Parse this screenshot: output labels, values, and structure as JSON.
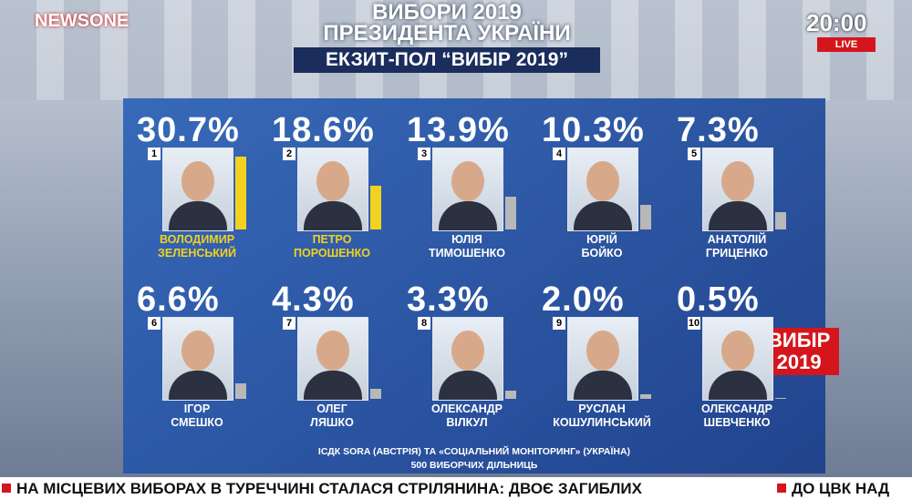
{
  "channel": {
    "logo": "NEWSONE",
    "time": "20:00",
    "live": "LIVE"
  },
  "header": {
    "title_line1": "ВИБОРИ 2019",
    "title_line2": "ПРЕЗИДЕНТА УКРАЇНИ",
    "subtitle": "ЕКЗИТ-ПОЛ “ВИБІР 2019”"
  },
  "badge": "ВИБІР 2019",
  "source": {
    "line1": "ІСДК SORA (АВСТРІЯ) ТА «СОЦІАЛЬНИЙ МОНІТОРИНГ» (УКРАЇНА)",
    "line2": "500 ВИБОРЧИХ ДІЛЬНИЦЬ"
  },
  "ticker": {
    "text1": "НА МІСЦЕВИХ ВИБОРАХ В ТУРЕЧЧИНІ СТАЛАСЯ СТРІЛЯНИНА: ДВОЄ ЗАГИБЛИХ",
    "text2": "ДО ЦВК НАД"
  },
  "chart_data": {
    "type": "bar",
    "ranks": [
      "1",
      "2",
      "3",
      "4",
      "5",
      "6",
      "7",
      "8",
      "9",
      "10"
    ],
    "categories": [
      "ВОЛОДИМИР ЗЕЛЕНСЬКИЙ",
      "ПЕТРО ПОРОШЕНКО",
      "ЮЛІЯ ТИМОШЕНКО",
      "ЮРІЙ БОЙКО",
      "АНАТОЛІЙ ГРИЦЕНКО",
      "ІГОР СМЕШКО",
      "ОЛЕГ ЛЯШКО",
      "ОЛЕКСАНДР ВІЛКУЛ",
      "РУСЛАН КОШУЛИНСЬКИЙ",
      "ОЛЕКСАНДР ШЕВЧЕНКО"
    ],
    "values": [
      30.7,
      18.6,
      13.9,
      10.3,
      7.3,
      6.6,
      4.3,
      3.3,
      2.0,
      0.5
    ],
    "value_labels": [
      "30.7%",
      "18.6%",
      "13.9%",
      "10.3%",
      "7.3%",
      "6.6%",
      "4.3%",
      "3.3%",
      "2.0%",
      "0.5%"
    ],
    "colors": [
      "#f2d21e",
      "#f2d21e",
      "#b8b8b8",
      "#b8b8b8",
      "#b8b8b8",
      "#b8b8b8",
      "#b8b8b8",
      "#b8b8b8",
      "#b8b8b8",
      "#b8b8b8"
    ],
    "label_colors": [
      "#f2d21e",
      "#f2d21e",
      "#ffffff",
      "#ffffff",
      "#ffffff",
      "#ffffff",
      "#ffffff",
      "#ffffff",
      "#ffffff",
      "#ffffff"
    ]
  }
}
